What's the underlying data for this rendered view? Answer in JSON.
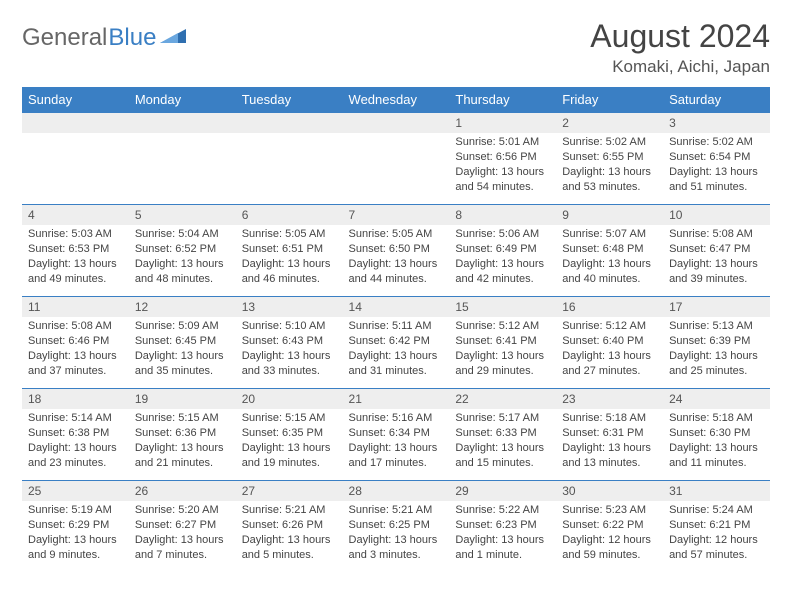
{
  "brand": {
    "part1": "General",
    "part2": "Blue"
  },
  "title": "August 2024",
  "location": "Komaki, Aichi, Japan",
  "colors": {
    "header_bg": "#3a7fc4",
    "header_text": "#ffffff",
    "daynum_bg": "#eeeeee",
    "border": "#3a7fc4",
    "page_bg": "#ffffff",
    "text": "#444444"
  },
  "typography": {
    "title_fontsize": 32,
    "location_fontsize": 17,
    "header_fontsize": 13,
    "daynum_fontsize": 12,
    "body_fontsize": 11
  },
  "day_headers": [
    "Sunday",
    "Monday",
    "Tuesday",
    "Wednesday",
    "Thursday",
    "Friday",
    "Saturday"
  ],
  "weeks": [
    [
      null,
      null,
      null,
      null,
      {
        "n": "1",
        "sunrise": "5:01 AM",
        "sunset": "6:56 PM",
        "daylight": "13 hours and 54 minutes."
      },
      {
        "n": "2",
        "sunrise": "5:02 AM",
        "sunset": "6:55 PM",
        "daylight": "13 hours and 53 minutes."
      },
      {
        "n": "3",
        "sunrise": "5:02 AM",
        "sunset": "6:54 PM",
        "daylight": "13 hours and 51 minutes."
      }
    ],
    [
      {
        "n": "4",
        "sunrise": "5:03 AM",
        "sunset": "6:53 PM",
        "daylight": "13 hours and 49 minutes."
      },
      {
        "n": "5",
        "sunrise": "5:04 AM",
        "sunset": "6:52 PM",
        "daylight": "13 hours and 48 minutes."
      },
      {
        "n": "6",
        "sunrise": "5:05 AM",
        "sunset": "6:51 PM",
        "daylight": "13 hours and 46 minutes."
      },
      {
        "n": "7",
        "sunrise": "5:05 AM",
        "sunset": "6:50 PM",
        "daylight": "13 hours and 44 minutes."
      },
      {
        "n": "8",
        "sunrise": "5:06 AM",
        "sunset": "6:49 PM",
        "daylight": "13 hours and 42 minutes."
      },
      {
        "n": "9",
        "sunrise": "5:07 AM",
        "sunset": "6:48 PM",
        "daylight": "13 hours and 40 minutes."
      },
      {
        "n": "10",
        "sunrise": "5:08 AM",
        "sunset": "6:47 PM",
        "daylight": "13 hours and 39 minutes."
      }
    ],
    [
      {
        "n": "11",
        "sunrise": "5:08 AM",
        "sunset": "6:46 PM",
        "daylight": "13 hours and 37 minutes."
      },
      {
        "n": "12",
        "sunrise": "5:09 AM",
        "sunset": "6:45 PM",
        "daylight": "13 hours and 35 minutes."
      },
      {
        "n": "13",
        "sunrise": "5:10 AM",
        "sunset": "6:43 PM",
        "daylight": "13 hours and 33 minutes."
      },
      {
        "n": "14",
        "sunrise": "5:11 AM",
        "sunset": "6:42 PM",
        "daylight": "13 hours and 31 minutes."
      },
      {
        "n": "15",
        "sunrise": "5:12 AM",
        "sunset": "6:41 PM",
        "daylight": "13 hours and 29 minutes."
      },
      {
        "n": "16",
        "sunrise": "5:12 AM",
        "sunset": "6:40 PM",
        "daylight": "13 hours and 27 minutes."
      },
      {
        "n": "17",
        "sunrise": "5:13 AM",
        "sunset": "6:39 PM",
        "daylight": "13 hours and 25 minutes."
      }
    ],
    [
      {
        "n": "18",
        "sunrise": "5:14 AM",
        "sunset": "6:38 PM",
        "daylight": "13 hours and 23 minutes."
      },
      {
        "n": "19",
        "sunrise": "5:15 AM",
        "sunset": "6:36 PM",
        "daylight": "13 hours and 21 minutes."
      },
      {
        "n": "20",
        "sunrise": "5:15 AM",
        "sunset": "6:35 PM",
        "daylight": "13 hours and 19 minutes."
      },
      {
        "n": "21",
        "sunrise": "5:16 AM",
        "sunset": "6:34 PM",
        "daylight": "13 hours and 17 minutes."
      },
      {
        "n": "22",
        "sunrise": "5:17 AM",
        "sunset": "6:33 PM",
        "daylight": "13 hours and 15 minutes."
      },
      {
        "n": "23",
        "sunrise": "5:18 AM",
        "sunset": "6:31 PM",
        "daylight": "13 hours and 13 minutes."
      },
      {
        "n": "24",
        "sunrise": "5:18 AM",
        "sunset": "6:30 PM",
        "daylight": "13 hours and 11 minutes."
      }
    ],
    [
      {
        "n": "25",
        "sunrise": "5:19 AM",
        "sunset": "6:29 PM",
        "daylight": "13 hours and 9 minutes."
      },
      {
        "n": "26",
        "sunrise": "5:20 AM",
        "sunset": "6:27 PM",
        "daylight": "13 hours and 7 minutes."
      },
      {
        "n": "27",
        "sunrise": "5:21 AM",
        "sunset": "6:26 PM",
        "daylight": "13 hours and 5 minutes."
      },
      {
        "n": "28",
        "sunrise": "5:21 AM",
        "sunset": "6:25 PM",
        "daylight": "13 hours and 3 minutes."
      },
      {
        "n": "29",
        "sunrise": "5:22 AM",
        "sunset": "6:23 PM",
        "daylight": "13 hours and 1 minute."
      },
      {
        "n": "30",
        "sunrise": "5:23 AM",
        "sunset": "6:22 PM",
        "daylight": "12 hours and 59 minutes."
      },
      {
        "n": "31",
        "sunrise": "5:24 AM",
        "sunset": "6:21 PM",
        "daylight": "12 hours and 57 minutes."
      }
    ]
  ],
  "labels": {
    "sunrise": "Sunrise: ",
    "sunset": "Sunset: ",
    "daylight": "Daylight: "
  }
}
